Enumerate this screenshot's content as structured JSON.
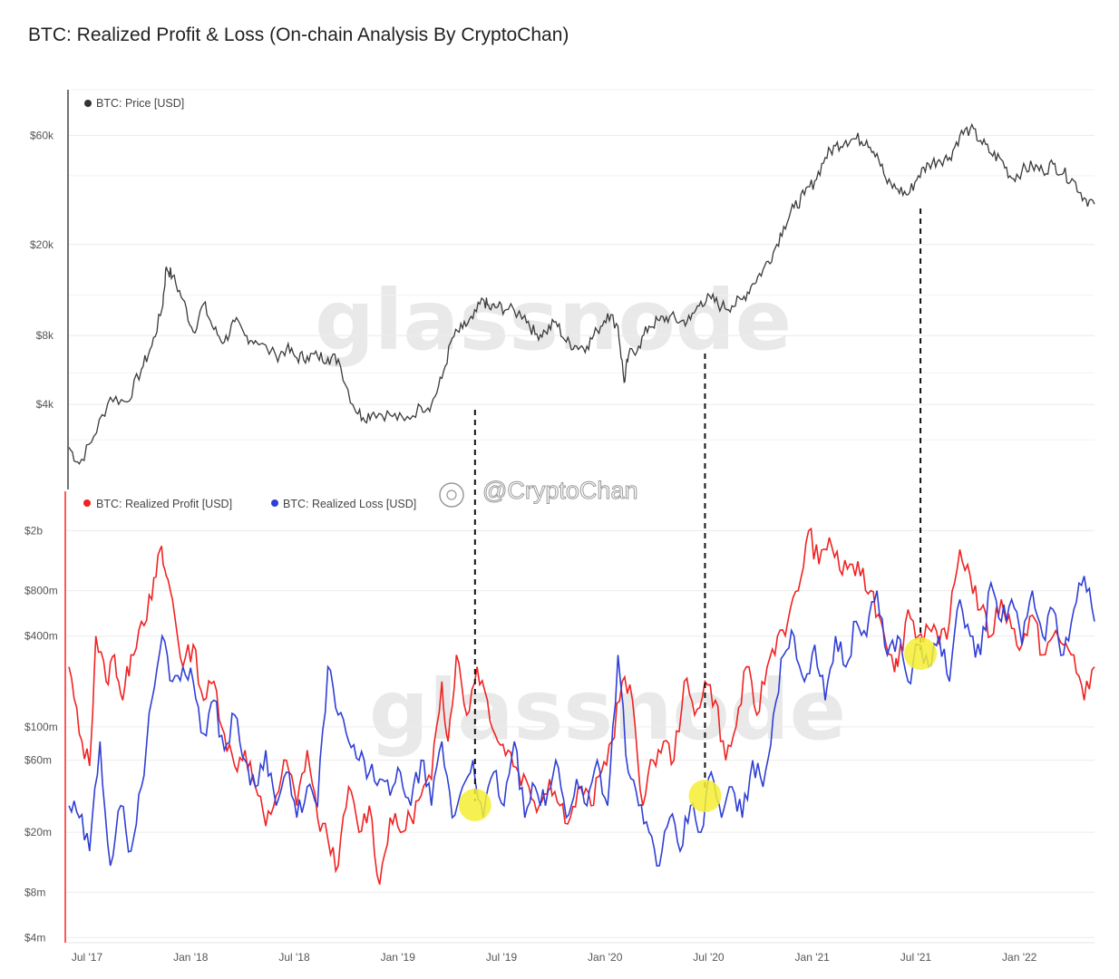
{
  "title": "BTC: Realized Profit & Loss (On-chain Analysis By CryptoChan)",
  "watermark": "glassnode",
  "handle": "@CryptoChan",
  "colors": {
    "price": "#3a3a3a",
    "profit": "#f02323",
    "loss": "#2f3fd6",
    "marker": "#f5ef32"
  },
  "chart_data": [
    {
      "type": "line",
      "series": [
        {
          "name": "BTC: Price [USD]"
        }
      ],
      "yscale": "log",
      "x_ticks": [
        "Jul '17",
        "Jan '18",
        "Jul '18",
        "Jan '19",
        "Jul '19",
        "Jan '20",
        "Jul '20",
        "Jan '21",
        "Jul '21",
        "Jan '22"
      ],
      "y_ticks": [
        "$60k",
        "$20k",
        "$8k",
        "$4k"
      ],
      "y_tick_values": [
        60000,
        20000,
        8000,
        4000
      ],
      "xlim": [
        2017.5,
        2022.45
      ],
      "ylim": [
        1700,
        95000
      ],
      "x": [
        2017.5,
        2017.55,
        2017.62,
        2017.7,
        2017.78,
        2017.85,
        2017.9,
        2017.95,
        2017.97,
        2018.0,
        2018.05,
        2018.1,
        2018.15,
        2018.2,
        2018.25,
        2018.3,
        2018.35,
        2018.4,
        2018.5,
        2018.55,
        2018.6,
        2018.65,
        2018.7,
        2018.75,
        2018.8,
        2018.87,
        2018.92,
        2018.97,
        2019.05,
        2019.12,
        2019.2,
        2019.25,
        2019.3,
        2019.35,
        2019.4,
        2019.45,
        2019.5,
        2019.53,
        2019.57,
        2019.62,
        2019.7,
        2019.75,
        2019.8,
        2019.85,
        2019.9,
        2019.95,
        2020.0,
        2020.05,
        2020.1,
        2020.15,
        2020.18,
        2020.2,
        2020.25,
        2020.3,
        2020.35,
        2020.4,
        2020.45,
        2020.5,
        2020.55,
        2020.6,
        2020.65,
        2020.7,
        2020.75,
        2020.8,
        2020.85,
        2020.9,
        2020.95,
        2021.0,
        2021.05,
        2021.1,
        2021.15,
        2021.2,
        2021.25,
        2021.3,
        2021.35,
        2021.4,
        2021.45,
        2021.5,
        2021.55,
        2021.6,
        2021.65,
        2021.7,
        2021.75,
        2021.8,
        2021.85,
        2021.9,
        2021.95,
        2022.0,
        2022.05,
        2022.1,
        2022.15,
        2022.2,
        2022.25,
        2022.3,
        2022.35,
        2022.4,
        2022.45
      ],
      "values": [
        2600,
        2200,
        2900,
        4300,
        4100,
        5700,
        7200,
        10500,
        16000,
        14500,
        11500,
        8300,
        11000,
        8500,
        7500,
        9200,
        8000,
        7600,
        6500,
        7000,
        6400,
        6500,
        6500,
        6400,
        6300,
        4000,
        3500,
        3700,
        3600,
        3400,
        3900,
        4000,
        5200,
        7800,
        8600,
        9500,
        11500,
        10500,
        10700,
        10400,
        9800,
        8100,
        8300,
        9200,
        7500,
        7200,
        7200,
        8400,
        10000,
        8800,
        5000,
        6500,
        7200,
        8800,
        9300,
        9700,
        9200,
        9400,
        11300,
        11600,
        10700,
        10800,
        11500,
        13500,
        15500,
        18500,
        24000,
        29000,
        33000,
        38000,
        48000,
        54000,
        57000,
        58000,
        57000,
        50000,
        37000,
        35000,
        33000,
        40000,
        45000,
        47000,
        48000,
        60000,
        64000,
        57000,
        50000,
        47000,
        39000,
        42000,
        44000,
        42000,
        45000,
        41000,
        38000,
        32000,
        30000
      ]
    },
    {
      "type": "line",
      "yscale": "log",
      "series": [
        {
          "name": "BTC: Realized Profit [USD]",
          "x": [
            2017.5,
            2017.55,
            2017.6,
            2017.63,
            2017.68,
            2017.72,
            2017.76,
            2017.8,
            2017.85,
            2017.9,
            2017.94,
            2017.97,
            2018.0,
            2018.05,
            2018.1,
            2018.15,
            2018.2,
            2018.25,
            2018.3,
            2018.35,
            2018.4,
            2018.45,
            2018.5,
            2018.55,
            2018.6,
            2018.65,
            2018.7,
            2018.75,
            2018.8,
            2018.85,
            2018.9,
            2018.95,
            2019.0,
            2019.05,
            2019.1,
            2019.15,
            2019.2,
            2019.25,
            2019.3,
            2019.33,
            2019.37,
            2019.42,
            2019.47,
            2019.52,
            2019.57,
            2019.62,
            2019.67,
            2019.72,
            2019.77,
            2019.82,
            2019.87,
            2019.92,
            2019.97,
            2020.02,
            2020.07,
            2020.12,
            2020.17,
            2020.22,
            2020.27,
            2020.32,
            2020.37,
            2020.42,
            2020.47,
            2020.52,
            2020.57,
            2020.62,
            2020.67,
            2020.72,
            2020.77,
            2020.82,
            2020.87,
            2020.92,
            2020.97,
            2021.02,
            2021.07,
            2021.12,
            2021.17,
            2021.22,
            2021.27,
            2021.32,
            2021.37,
            2021.42,
            2021.47,
            2021.5,
            2021.55,
            2021.6,
            2021.65,
            2021.7,
            2021.75,
            2021.8,
            2021.85,
            2021.9,
            2021.95,
            2022.0,
            2022.05,
            2022.1,
            2022.15,
            2022.2,
            2022.25,
            2022.3,
            2022.35,
            2022.4,
            2022.45
          ],
          "values": [
            250000000,
            90000000,
            55000000,
            400000000,
            200000000,
            300000000,
            150000000,
            300000000,
            500000000,
            700000000,
            1500000000,
            1000000000,
            700000000,
            250000000,
            350000000,
            150000000,
            200000000,
            90000000,
            55000000,
            70000000,
            40000000,
            22000000,
            35000000,
            60000000,
            30000000,
            70000000,
            25000000,
            18000000,
            12000000,
            40000000,
            20000000,
            30000000,
            9000000,
            25000000,
            20000000,
            25000000,
            35000000,
            45000000,
            200000000,
            80000000,
            300000000,
            120000000,
            250000000,
            150000000,
            80000000,
            70000000,
            50000000,
            40000000,
            30000000,
            45000000,
            30000000,
            25000000,
            40000000,
            30000000,
            50000000,
            80000000,
            200000000,
            150000000,
            30000000,
            60000000,
            80000000,
            60000000,
            200000000,
            120000000,
            200000000,
            150000000,
            60000000,
            100000000,
            250000000,
            120000000,
            250000000,
            400000000,
            500000000,
            800000000,
            2000000000,
            1200000000,
            1800000000,
            1100000000,
            1200000000,
            1000000000,
            800000000,
            500000000,
            300000000,
            250000000,
            600000000,
            400000000,
            450000000,
            350000000,
            500000000,
            1500000000,
            1000000000,
            600000000,
            400000000,
            700000000,
            450000000,
            350000000,
            550000000,
            300000000,
            400000000,
            350000000,
            300000000,
            150000000,
            250000000
          ]
        },
        {
          "name": "BTC: Realized Loss [USD]",
          "x": [
            2017.5,
            2017.55,
            2017.6,
            2017.65,
            2017.7,
            2017.75,
            2017.8,
            2017.85,
            2017.9,
            2017.95,
            2018.0,
            2018.05,
            2018.1,
            2018.15,
            2018.2,
            2018.25,
            2018.3,
            2018.35,
            2018.4,
            2018.45,
            2018.5,
            2018.55,
            2018.6,
            2018.65,
            2018.7,
            2018.75,
            2018.8,
            2018.85,
            2018.9,
            2018.95,
            2019.0,
            2019.05,
            2019.1,
            2019.15,
            2019.2,
            2019.25,
            2019.3,
            2019.35,
            2019.4,
            2019.45,
            2019.5,
            2019.55,
            2019.6,
            2019.65,
            2019.7,
            2019.75,
            2019.8,
            2019.85,
            2019.9,
            2019.95,
            2020.0,
            2020.05,
            2020.1,
            2020.15,
            2020.2,
            2020.25,
            2020.3,
            2020.35,
            2020.4,
            2020.45,
            2020.5,
            2020.55,
            2020.6,
            2020.65,
            2020.7,
            2020.75,
            2020.8,
            2020.85,
            2020.9,
            2020.95,
            2021.0,
            2021.05,
            2021.1,
            2021.15,
            2021.2,
            2021.25,
            2021.3,
            2021.35,
            2021.4,
            2021.45,
            2021.5,
            2021.55,
            2021.6,
            2021.65,
            2021.7,
            2021.75,
            2021.8,
            2021.85,
            2021.9,
            2021.95,
            2022.0,
            2022.05,
            2022.1,
            2022.15,
            2022.2,
            2022.25,
            2022.3,
            2022.35,
            2022.4,
            2022.45
          ],
          "values": [
            30000000,
            25000000,
            15000000,
            80000000,
            12000000,
            30000000,
            15000000,
            40000000,
            150000000,
            400000000,
            200000000,
            250000000,
            200000000,
            90000000,
            150000000,
            70000000,
            120000000,
            60000000,
            40000000,
            70000000,
            30000000,
            50000000,
            25000000,
            40000000,
            30000000,
            250000000,
            120000000,
            80000000,
            60000000,
            50000000,
            45000000,
            35000000,
            50000000,
            30000000,
            60000000,
            30000000,
            80000000,
            25000000,
            40000000,
            60000000,
            25000000,
            50000000,
            30000000,
            80000000,
            25000000,
            40000000,
            30000000,
            60000000,
            25000000,
            45000000,
            30000000,
            60000000,
            30000000,
            300000000,
            50000000,
            30000000,
            20000000,
            12000000,
            25000000,
            15000000,
            30000000,
            20000000,
            50000000,
            25000000,
            40000000,
            25000000,
            60000000,
            40000000,
            120000000,
            300000000,
            400000000,
            200000000,
            350000000,
            150000000,
            400000000,
            250000000,
            500000000,
            400000000,
            800000000,
            300000000,
            400000000,
            200000000,
            350000000,
            250000000,
            400000000,
            200000000,
            700000000,
            400000000,
            300000000,
            900000000,
            500000000,
            700000000,
            350000000,
            800000000,
            400000000,
            600000000,
            300000000,
            600000000,
            1000000000,
            500000000
          ]
        }
      ],
      "x_ticks": [
        "Jul '17",
        "Jan '18",
        "Jul '18",
        "Jan '19",
        "Jul '19",
        "Jan '20",
        "Jul '20",
        "Jan '21",
        "Jul '21",
        "Jan '22"
      ],
      "y_ticks": [
        "$2b",
        "$800m",
        "$400m",
        "$100m",
        "$60m",
        "$20m",
        "$8m",
        "$4m"
      ],
      "y_tick_values": [
        2000000000,
        800000000,
        400000000,
        100000000,
        60000000,
        20000000,
        8000000,
        4000000
      ],
      "ylim": [
        3700000,
        3500000000
      ],
      "markers_x": [
        2019.46,
        2020.57,
        2021.61
      ]
    }
  ]
}
